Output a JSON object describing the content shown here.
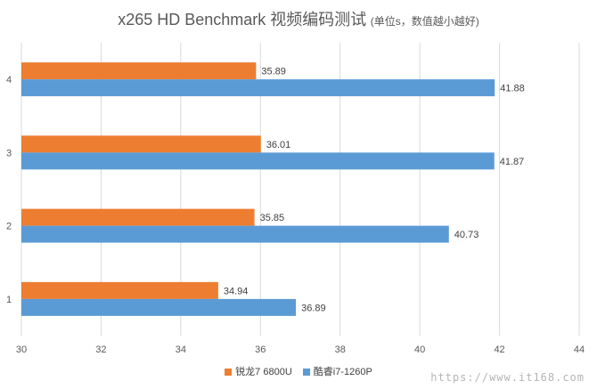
{
  "title": "x265 HD Benchmark 视频编码测试",
  "subtitle": "(单位s，数值越小越好)",
  "watermark": "https://www.it168.com",
  "colors": {
    "orange": "#ed7d31",
    "blue": "#5b9bd5",
    "grid": "#d9d9d9",
    "text": "#595959"
  },
  "chart_data": {
    "type": "bar",
    "orientation": "horizontal",
    "title": "x265 HD Benchmark 视频编码测试",
    "subtitle": "(单位s，数值越小越好)",
    "categories": [
      "1",
      "2",
      "3",
      "4"
    ],
    "series": [
      {
        "name": "锐龙7 6800U",
        "values": [
          34.94,
          35.85,
          36.01,
          35.89
        ],
        "color": "#ed7d31"
      },
      {
        "name": "酷睿i7-1260P",
        "values": [
          36.89,
          40.73,
          41.87,
          41.88
        ],
        "color": "#5b9bd5"
      }
    ],
    "xlim": [
      30,
      44
    ],
    "xticks": [
      "30",
      "32",
      "34",
      "36",
      "38",
      "40",
      "42",
      "44"
    ],
    "grid": true,
    "legend": "bottom"
  }
}
